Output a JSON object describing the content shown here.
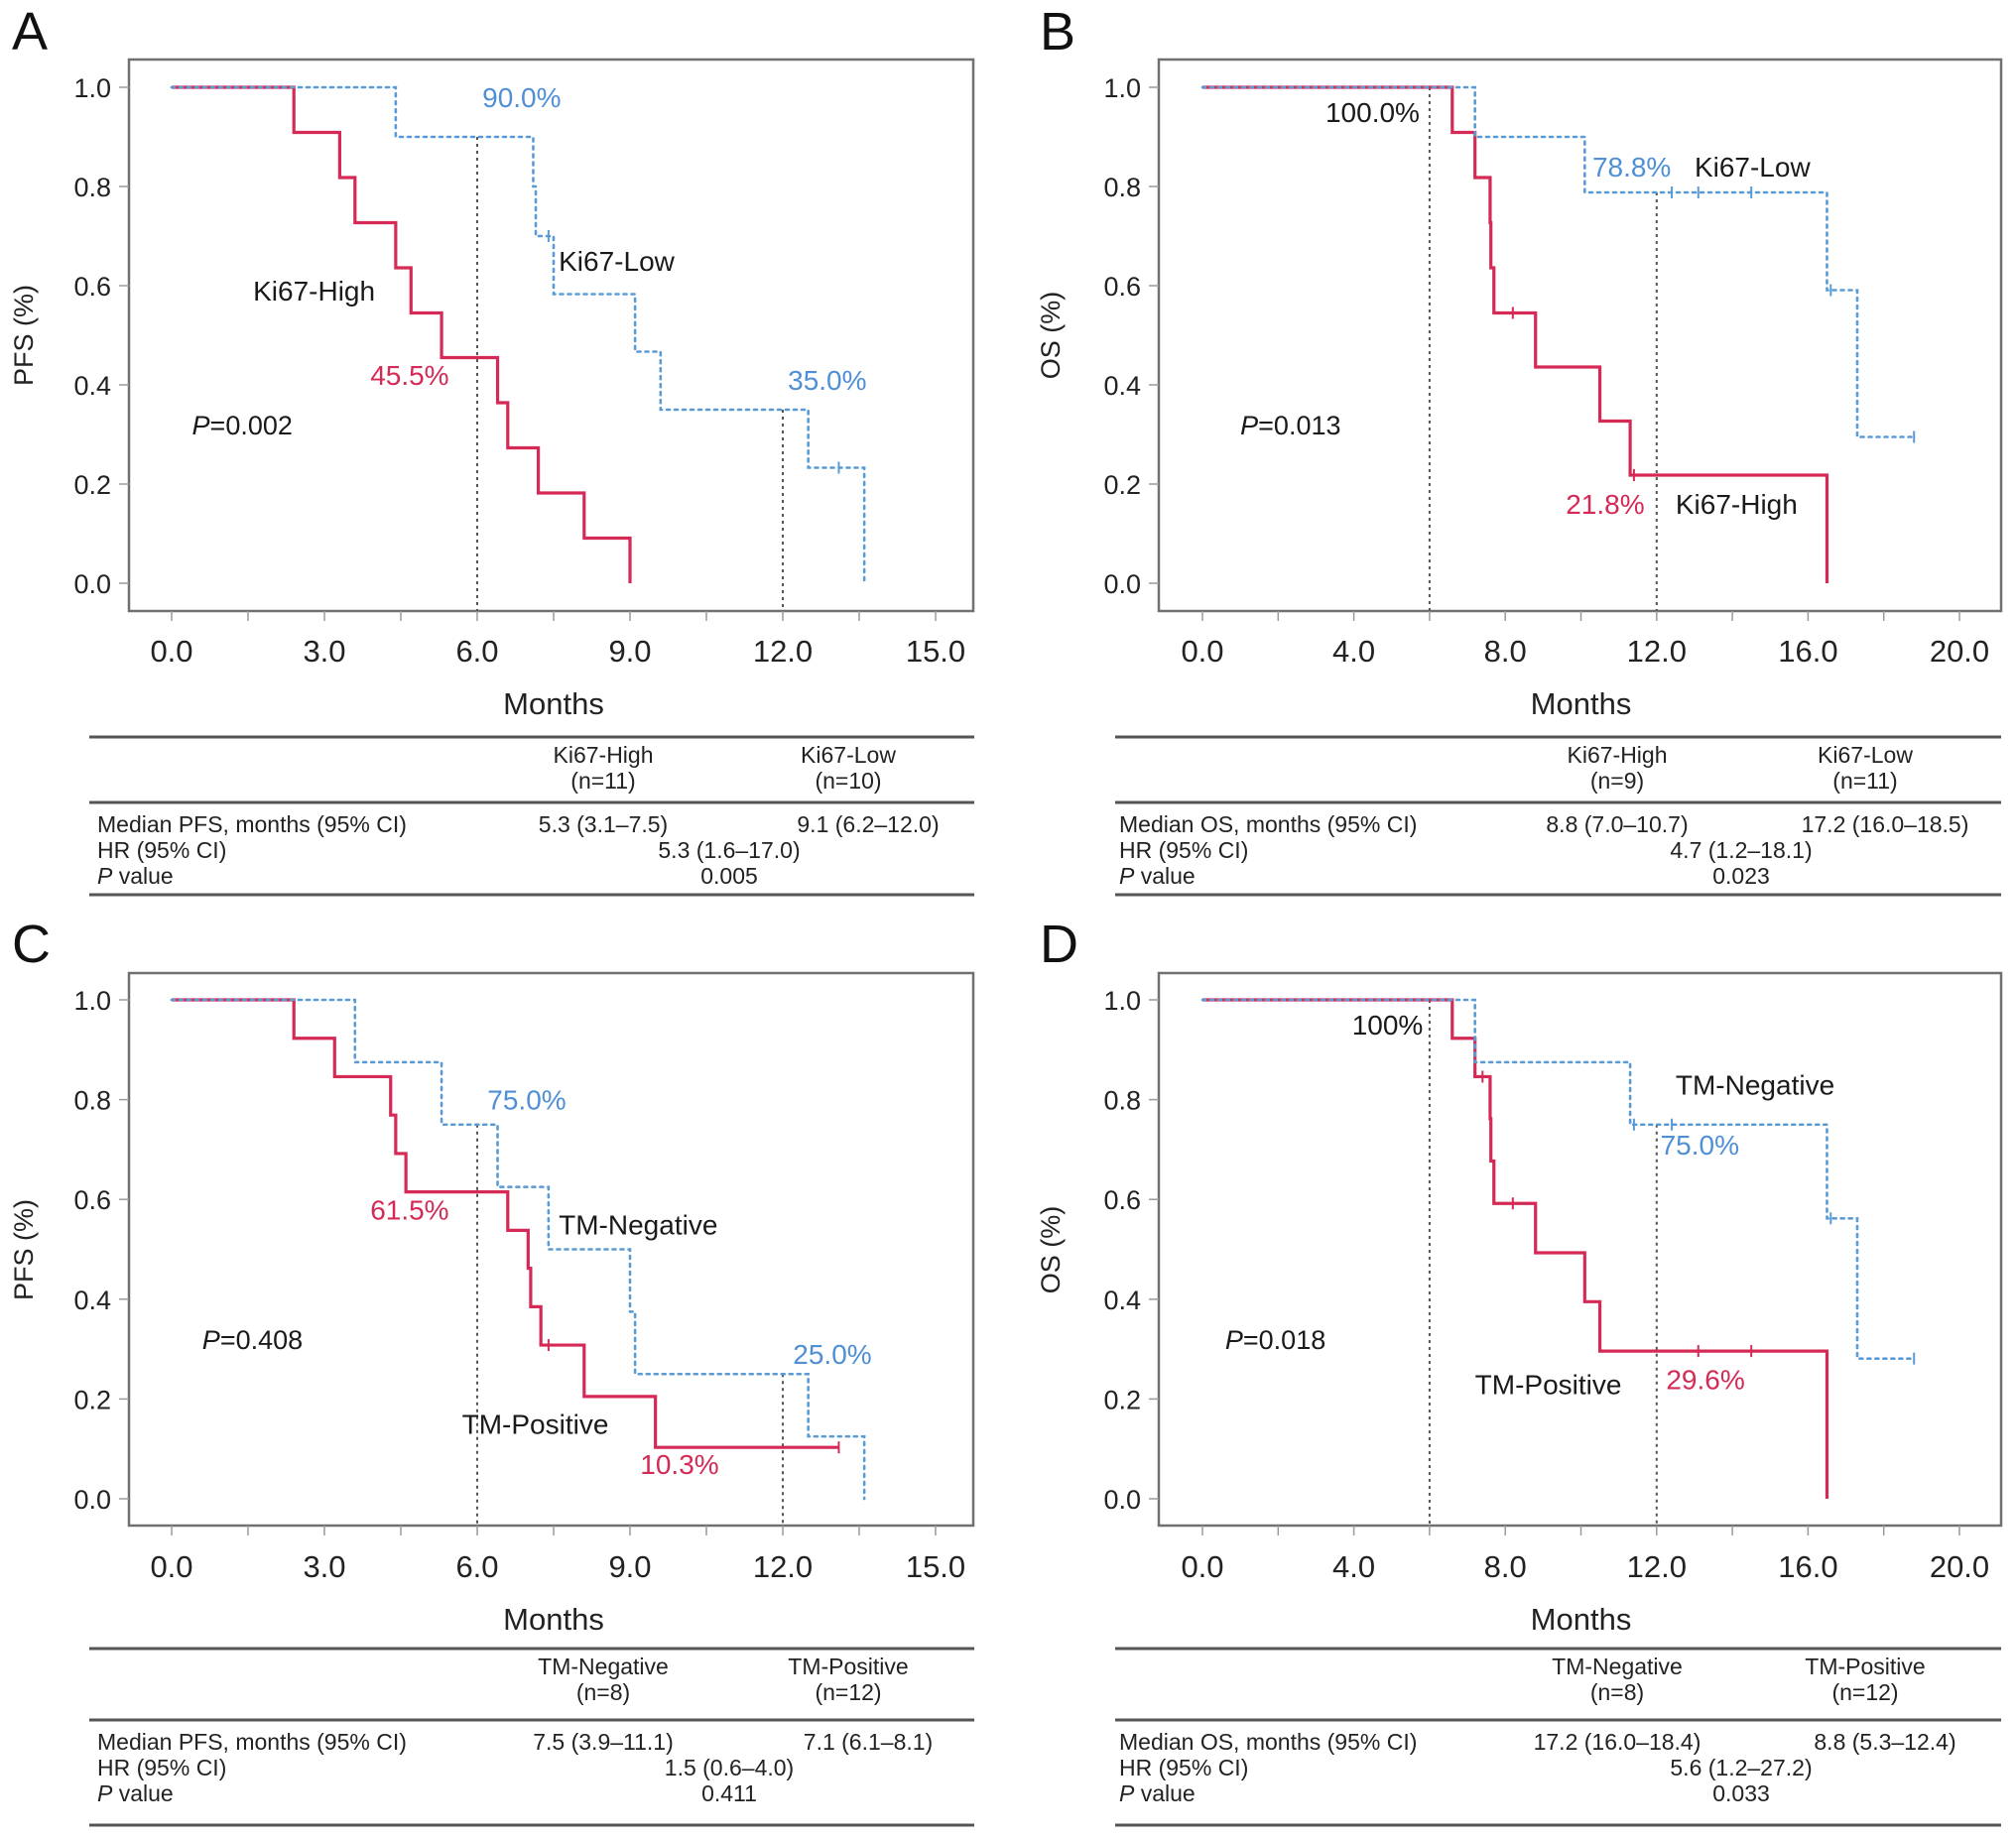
{
  "colors": {
    "high_or_positive": "#d42a55",
    "low_or_negative": "#5b9bd5",
    "axis": "#666666",
    "text": "#1a1a1a",
    "median_line": "#555555"
  },
  "chart_data": [
    {
      "panel": "A",
      "type": "line",
      "subtype": "kaplan-meier step",
      "ylabel": "PFS (%)",
      "xlabel": "Months",
      "xlim": [
        0,
        15
      ],
      "ylim": [
        0,
        1
      ],
      "xticks": [
        "0.0",
        "3.0",
        "6.0",
        "9.0",
        "12.0",
        "15.0"
      ],
      "yticks": [
        "0.0",
        "0.2",
        "0.4",
        "0.6",
        "0.8",
        "1.0"
      ],
      "p_text": "=0.002",
      "p_label": "P",
      "reference_lines_x": [
        6,
        12
      ],
      "series": [
        {
          "name": "Ki67-High",
          "color": "red",
          "style": "solid",
          "steps": [
            [
              0,
              1
            ],
            [
              2.4,
              0.909
            ],
            [
              3.3,
              0.818
            ],
            [
              3.6,
              0.727
            ],
            [
              4.4,
              0.636
            ],
            [
              4.7,
              0.545
            ],
            [
              5.3,
              0.455
            ],
            [
              6.4,
              0.364
            ],
            [
              6.6,
              0.273
            ],
            [
              7.2,
              0.182
            ],
            [
              8.1,
              0.091
            ],
            [
              9.0,
              0
            ]
          ],
          "end": 9.0,
          "censors": []
        },
        {
          "name": "Ki67-Low",
          "color": "blue",
          "style": "dotted",
          "steps": [
            [
              0,
              1
            ],
            [
              4.4,
              0.9
            ],
            [
              7.1,
              0.8
            ],
            [
              7.15,
              0.7
            ],
            [
              7.5,
              0.583
            ],
            [
              9.1,
              0.467
            ],
            [
              9.6,
              0.35
            ],
            [
              12.5,
              0.233
            ],
            [
              13.6,
              0
            ]
          ],
          "end": 13.6,
          "censors": [
            [
              7.4,
              0.7
            ],
            [
              13.1,
              0.233
            ]
          ]
        }
      ],
      "annotations": [
        {
          "text": "90.0%",
          "color": "blue",
          "x": 6.1,
          "y": 0.96
        },
        {
          "text": "45.5%",
          "color": "red",
          "x": 3.9,
          "y": 0.4
        },
        {
          "text": "35.0%",
          "color": "blue",
          "x": 12.1,
          "y": 0.39
        },
        {
          "text": "Ki67-Low",
          "color": "black",
          "x": 7.6,
          "y": 0.63
        },
        {
          "text": "Ki67-High",
          "color": "black",
          "x": 1.6,
          "y": 0.57
        }
      ],
      "p_pos": [
        0.4,
        0.3
      ],
      "table": {
        "columns": [
          "Ki67-High",
          "Ki67-Low"
        ],
        "ns": [
          "(n=11)",
          "(n=10)"
        ],
        "rows": [
          {
            "label": "Median PFS, months (95% CI)",
            "values": [
              "5.3 (3.1–7.5)",
              "9.1 (6.2–12.0)"
            ]
          },
          {
            "label": "HR (95% CI)",
            "value": "5.3 (1.6–17.0)"
          },
          {
            "label_italic": "P",
            "label": " value",
            "value": "0.005"
          }
        ]
      }
    },
    {
      "panel": "B",
      "type": "line",
      "subtype": "kaplan-meier step",
      "ylabel": "OS (%)",
      "xlabel": "Months",
      "xlim": [
        0,
        20
      ],
      "ylim": [
        0,
        1
      ],
      "xticks": [
        "0.0",
        "4.0",
        "8.0",
        "12.0",
        "16.0",
        "20.0"
      ],
      "yticks": [
        "0.0",
        "0.2",
        "0.4",
        "0.6",
        "0.8",
        "1.0"
      ],
      "p_text": "=0.013",
      "p_label": "P",
      "reference_lines_x": [
        6,
        12
      ],
      "series": [
        {
          "name": "Ki67-High",
          "color": "red",
          "style": "solid",
          "steps": [
            [
              0,
              1
            ],
            [
              6.6,
              0.909
            ],
            [
              7.2,
              0.818
            ],
            [
              7.6,
              0.727
            ],
            [
              7.62,
              0.636
            ],
            [
              7.7,
              0.545
            ],
            [
              8.8,
              0.436
            ],
            [
              10.5,
              0.327
            ],
            [
              11.3,
              0.218
            ],
            [
              16.5,
              0
            ]
          ],
          "end": 16.5,
          "censors": [
            [
              8.2,
              0.545
            ],
            [
              11.4,
              0.218
            ]
          ]
        },
        {
          "name": "Ki67-Low",
          "color": "blue",
          "style": "dotted",
          "steps": [
            [
              0,
              1
            ],
            [
              7.2,
              0.9
            ],
            [
              10.1,
              0.788
            ],
            [
              16.5,
              0.591
            ],
            [
              17.3,
              0.295
            ]
          ],
          "end": 18.8,
          "censors": [
            [
              12.4,
              0.788
            ],
            [
              13.1,
              0.788
            ],
            [
              14.5,
              0.788
            ],
            [
              16.6,
              0.591
            ],
            [
              18.8,
              0.295
            ]
          ]
        }
      ],
      "annotations": [
        {
          "text": "100.0%",
          "color": "black",
          "x": 3.25,
          "y": 0.93
        },
        {
          "text": "78.8%",
          "color": "blue",
          "x": 10.3,
          "y": 0.82
        },
        {
          "text": "Ki67-Low",
          "color": "black",
          "x": 13.0,
          "y": 0.82
        },
        {
          "text": "21.8%",
          "color": "red",
          "x": 9.6,
          "y": 0.14
        },
        {
          "text": "Ki67-High",
          "color": "black",
          "x": 12.5,
          "y": 0.14
        }
      ],
      "p_pos": [
        1.0,
        0.3
      ],
      "table": {
        "columns": [
          "Ki67-High",
          "Ki67-Low"
        ],
        "ns": [
          "(n=9)",
          "(n=11)"
        ],
        "rows": [
          {
            "label": "Median OS, months (95% CI)",
            "values": [
              "8.8 (7.0–10.7)",
              "17.2 (16.0–18.5)"
            ]
          },
          {
            "label": "HR (95% CI)",
            "value": "4.7 (1.2–18.1)"
          },
          {
            "label_italic": "P",
            "label": " value",
            "value": "0.023"
          }
        ]
      }
    },
    {
      "panel": "C",
      "type": "line",
      "subtype": "kaplan-meier step",
      "ylabel": "PFS (%)",
      "xlabel": "Months",
      "xlim": [
        0,
        15
      ],
      "ylim": [
        0,
        1
      ],
      "xticks": [
        "0.0",
        "3.0",
        "6.0",
        "9.0",
        "12.0",
        "15.0"
      ],
      "yticks": [
        "0.0",
        "0.2",
        "0.4",
        "0.6",
        "0.8",
        "1.0"
      ],
      "p_text": "=0.408",
      "p_label": "P",
      "reference_lines_x": [
        6,
        12
      ],
      "series": [
        {
          "name": "TM-Positive",
          "color": "red",
          "style": "solid",
          "steps": [
            [
              0,
              1
            ],
            [
              2.4,
              0.923
            ],
            [
              3.2,
              0.846
            ],
            [
              4.3,
              0.769
            ],
            [
              4.4,
              0.692
            ],
            [
              4.6,
              0.615
            ],
            [
              6.6,
              0.538
            ],
            [
              7.0,
              0.462
            ],
            [
              7.05,
              0.385
            ],
            [
              7.25,
              0.308
            ],
            [
              8.1,
              0.205
            ],
            [
              9.5,
              0.103
            ]
          ],
          "end": 13.1,
          "censors": [
            [
              7.4,
              0.308
            ],
            [
              13.1,
              0.103
            ]
          ]
        },
        {
          "name": "TM-Negative",
          "color": "blue",
          "style": "dotted",
          "steps": [
            [
              0,
              1
            ],
            [
              3.6,
              0.875
            ],
            [
              5.3,
              0.75
            ],
            [
              6.4,
              0.625
            ],
            [
              7.4,
              0.5
            ],
            [
              9.0,
              0.375
            ],
            [
              9.1,
              0.25
            ],
            [
              12.5,
              0.125
            ],
            [
              13.6,
              0
            ]
          ],
          "end": 13.6,
          "censors": []
        }
      ],
      "annotations": [
        {
          "text": "75.0%",
          "color": "blue",
          "x": 6.2,
          "y": 0.78
        },
        {
          "text": "61.5%",
          "color": "red",
          "x": 3.9,
          "y": 0.56
        },
        {
          "text": "TM-Negative",
          "color": "black",
          "x": 7.6,
          "y": 0.53
        },
        {
          "text": "25.0%",
          "color": "blue",
          "x": 12.2,
          "y": 0.27
        },
        {
          "text": "TM-Positive",
          "color": "black",
          "x": 5.7,
          "y": 0.13
        },
        {
          "text": "10.3%",
          "color": "red",
          "x": 9.2,
          "y": 0.05
        }
      ],
      "p_pos": [
        0.6,
        0.3
      ],
      "table": {
        "columns": [
          "TM-Negative",
          "TM-Positive"
        ],
        "ns": [
          "(n=8)",
          "(n=12)"
        ],
        "rows": [
          {
            "label": "Median PFS, months (95% CI)",
            "values": [
              "7.5 (3.9–11.1)",
              "7.1 (6.1–8.1)"
            ]
          },
          {
            "label": "HR (95% CI)",
            "value": "1.5 (0.6–4.0)"
          },
          {
            "label_italic": "P",
            "label": " value",
            "value": "0.411"
          }
        ]
      }
    },
    {
      "panel": "D",
      "type": "line",
      "subtype": "kaplan-meier step",
      "ylabel": "OS (%)",
      "xlabel": "Months",
      "xlim": [
        0,
        20
      ],
      "ylim": [
        0,
        1
      ],
      "xticks": [
        "0.0",
        "4.0",
        "8.0",
        "12.0",
        "16.0",
        "20.0"
      ],
      "yticks": [
        "0.0",
        "0.2",
        "0.4",
        "0.6",
        "0.8",
        "1.0"
      ],
      "p_text": "=0.018",
      "p_label": "P",
      "reference_lines_x": [
        6,
        12
      ],
      "series": [
        {
          "name": "TM-Positive",
          "color": "red",
          "style": "solid",
          "steps": [
            [
              0,
              1
            ],
            [
              6.6,
              0.923
            ],
            [
              7.2,
              0.846
            ],
            [
              7.6,
              0.762
            ],
            [
              7.62,
              0.677
            ],
            [
              7.7,
              0.592
            ],
            [
              8.8,
              0.493
            ],
            [
              10.1,
              0.395
            ],
            [
              10.5,
              0.296
            ],
            [
              16.5,
              0
            ]
          ],
          "end": 16.5,
          "censors": [
            [
              7.4,
              0.846
            ],
            [
              8.2,
              0.592
            ],
            [
              13.1,
              0.296
            ],
            [
              14.5,
              0.296
            ]
          ]
        },
        {
          "name": "TM-Negative",
          "color": "blue",
          "style": "dotted",
          "steps": [
            [
              0,
              1
            ],
            [
              7.2,
              0.875
            ],
            [
              11.3,
              0.75
            ],
            [
              16.5,
              0.562
            ],
            [
              17.3,
              0.281
            ]
          ],
          "end": 18.8,
          "censors": [
            [
              11.4,
              0.75
            ],
            [
              12.4,
              0.75
            ],
            [
              16.6,
              0.562
            ],
            [
              18.8,
              0.281
            ]
          ]
        }
      ],
      "annotations": [
        {
          "text": "100%",
          "color": "black",
          "x": 3.95,
          "y": 0.93
        },
        {
          "text": "TM-Negative",
          "color": "black",
          "x": 12.5,
          "y": 0.81
        },
        {
          "text": "75.0%",
          "color": "blue",
          "x": 12.1,
          "y": 0.69
        },
        {
          "text": "TM-Positive",
          "color": "black",
          "x": 7.2,
          "y": 0.21
        },
        {
          "text": "29.6%",
          "color": "red",
          "x": 12.25,
          "y": 0.22
        }
      ],
      "p_pos": [
        0.6,
        0.3
      ],
      "table": {
        "columns": [
          "TM-Negative",
          "TM-Positive"
        ],
        "ns": [
          "(n=8)",
          "(n=12)"
        ],
        "rows": [
          {
            "label": "Median OS, months (95% CI)",
            "values": [
              "17.2 (16.0–18.4)",
              "8.8 (5.3–12.4)"
            ]
          },
          {
            "label": "HR (95% CI)",
            "value": "5.6 (1.2–27.2)"
          },
          {
            "label_italic": "P",
            "label": " value",
            "value": "0.033"
          }
        ]
      }
    }
  ]
}
